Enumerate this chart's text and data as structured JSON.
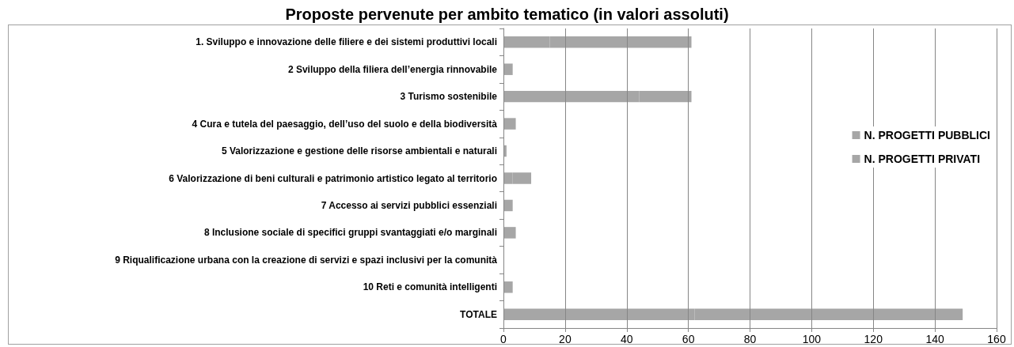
{
  "chart_data": {
    "type": "bar",
    "orientation": "horizontal",
    "stacked": true,
    "title": "Proposte pervenute per ambito tematico (in valori assoluti)",
    "categories": [
      "1. Sviluppo e innovazione delle filiere e dei sistemi produttivi locali",
      "2 Sviluppo della filiera dell’energia rinnovabile",
      "3 Turismo sostenibile",
      "4 Cura e tutela del paesaggio, dell’uso del suolo e della biodiversità",
      "5 Valorizzazione e gestione delle risorse ambientali e naturali",
      "6 Valorizzazione di beni culturali e patrimonio artistico legato al territorio",
      "7 Accesso ai servizi pubblici essenziali",
      "8 Inclusione sociale di specifici gruppi svantaggiati e/o marginali",
      "9 Riqualificazione urbana con la creazione di servizi e spazi inclusivi per la comunità",
      "10 Reti e comunità intelligenti",
      "TOTALE"
    ],
    "series": [
      {
        "name": "N. PROGETTI PUBBLICI",
        "color": "#a6a6a6",
        "values": [
          15,
          0,
          44,
          0,
          0,
          3,
          0,
          0,
          0,
          0,
          62
        ]
      },
      {
        "name": "N. PROGETTI PRIVATI",
        "color": "#a6a6a6",
        "values": [
          46,
          3,
          17,
          4,
          1,
          6,
          3,
          4,
          0,
          3,
          87
        ]
      }
    ],
    "xlim": [
      0,
      160
    ],
    "xticks": [
      0,
      20,
      40,
      60,
      80,
      100,
      120,
      140,
      160
    ],
    "grid": "x",
    "legend": "right"
  }
}
